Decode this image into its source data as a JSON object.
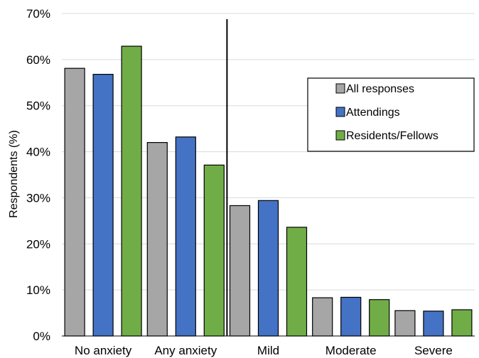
{
  "chart_data": {
    "type": "bar",
    "ylabel": "Respondents (%)",
    "xlabel": "",
    "ylim": [
      0,
      70
    ],
    "yticks": [
      0,
      10,
      20,
      30,
      40,
      50,
      60,
      70
    ],
    "ytick_labels": [
      "0%",
      "10%",
      "20%",
      "30%",
      "40%",
      "50%",
      "60%",
      "70%"
    ],
    "grid": true,
    "legend_position": "right",
    "separator_after_category": 1,
    "categories": [
      "No anxiety",
      "Any anxiety",
      "Mild",
      "Moderate",
      "Severe"
    ],
    "series": [
      {
        "name": "All responses",
        "color": "#a6a6a6",
        "values": [
          58.1,
          42.0,
          28.3,
          8.3,
          5.5
        ]
      },
      {
        "name": "Attendings",
        "color": "#4472c4",
        "values": [
          56.8,
          43.2,
          29.4,
          8.4,
          5.4
        ]
      },
      {
        "name": "Residents/Fellows",
        "color": "#70ad47",
        "values": [
          62.9,
          37.1,
          23.6,
          7.9,
          5.7
        ]
      }
    ]
  }
}
